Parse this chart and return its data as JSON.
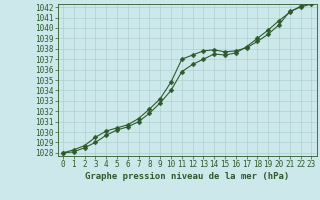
{
  "title": "Graphe pression niveau de la mer (hPa)",
  "bg_color": "#cde8ea",
  "line_color": "#2d5a2d",
  "grid_color": "#b0d0d0",
  "x_ticks": [
    0,
    1,
    2,
    3,
    4,
    5,
    6,
    7,
    8,
    9,
    10,
    11,
    12,
    13,
    14,
    15,
    16,
    17,
    18,
    19,
    20,
    21,
    22,
    23
  ],
  "y_min": 1028,
  "y_max": 1042,
  "y_ticks": [
    1028,
    1029,
    1030,
    1031,
    1032,
    1033,
    1034,
    1035,
    1036,
    1037,
    1038,
    1039,
    1040,
    1041,
    1042
  ],
  "series1_x": [
    0,
    1,
    2,
    3,
    4,
    5,
    6,
    7,
    8,
    9,
    10,
    11,
    12,
    13,
    14,
    15,
    16,
    17,
    18,
    19,
    20,
    21,
    22,
    23
  ],
  "series1": [
    1028.0,
    1028.3,
    1028.7,
    1029.5,
    1030.1,
    1030.4,
    1030.7,
    1031.3,
    1032.2,
    1033.2,
    1034.8,
    1037.0,
    1037.4,
    1037.8,
    1037.9,
    1037.7,
    1037.8,
    1038.1,
    1038.7,
    1039.4,
    1040.3,
    1041.6,
    1042.0,
    1042.3
  ],
  "series2_x": [
    0,
    1,
    2,
    3,
    4,
    5,
    6,
    7,
    8,
    9,
    10,
    11,
    12,
    13,
    14,
    15,
    16,
    17,
    18,
    19,
    20,
    21,
    22,
    23
  ],
  "series2": [
    1028.0,
    1028.1,
    1028.5,
    1029.0,
    1029.7,
    1030.2,
    1030.5,
    1031.0,
    1031.8,
    1032.8,
    1034.0,
    1035.8,
    1036.5,
    1037.0,
    1037.5,
    1037.4,
    1037.6,
    1038.2,
    1039.0,
    1039.8,
    1040.7,
    1041.5,
    1042.1,
    1042.4
  ],
  "marker": "D",
  "marker_size": 2.5,
  "linewidth": 0.8,
  "tick_fontsize": 5.5,
  "title_fontsize": 6.5
}
